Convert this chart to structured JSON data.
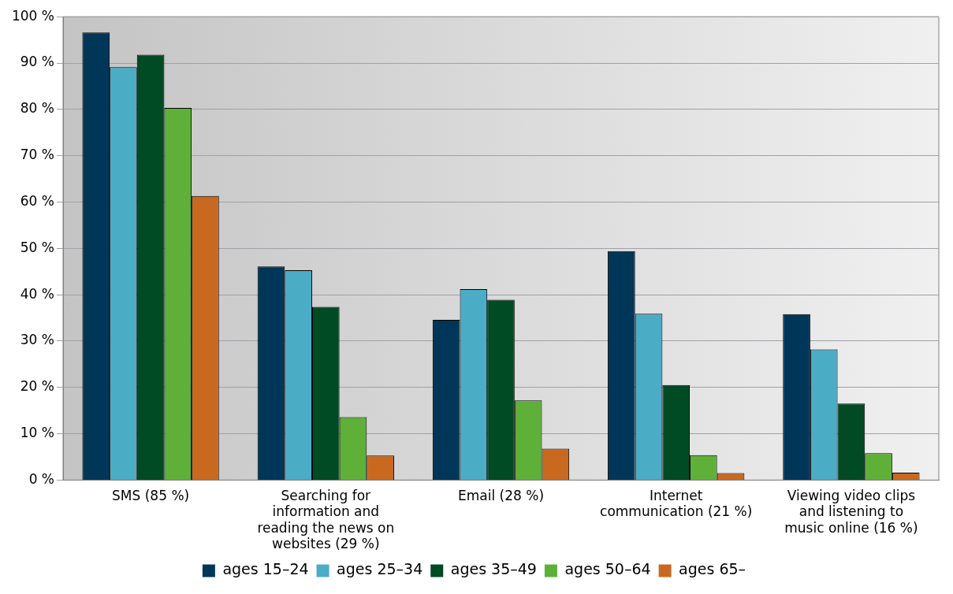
{
  "chart_data": {
    "type": "bar",
    "categories": [
      "SMS (85 %)",
      "Searching for information and reading the news on websites (29 %)",
      "Email (28 %)",
      "Internet communication (21 %)",
      "Viewing video clips and listening to music online (16 %)"
    ],
    "series": [
      {
        "name": "ages 15–24",
        "color": "#003658",
        "values": [
          96.6,
          46.1,
          34.6,
          49.4,
          35.8
        ]
      },
      {
        "name": "ages 25–34",
        "color": "#4bacc6",
        "values": [
          89.1,
          45.3,
          41.2,
          35.9,
          28.2
        ]
      },
      {
        "name": "ages 35–49",
        "color": "#004a24",
        "values": [
          91.8,
          37.4,
          38.9,
          20.5,
          16.5
        ]
      },
      {
        "name": "ages 50–64",
        "color": "#5eb038",
        "values": [
          80.3,
          13.6,
          17.2,
          5.4,
          5.8
        ]
      },
      {
        "name": "ages 65–",
        "color": "#c8691f",
        "values": [
          61.3,
          5.3,
          6.8,
          1.5,
          1.6
        ]
      }
    ],
    "ylim": [
      0,
      100
    ],
    "yticks": [
      {
        "value": 0,
        "label": "0 %"
      },
      {
        "value": 10,
        "label": "10 %"
      },
      {
        "value": 20,
        "label": "20 %"
      },
      {
        "value": 30,
        "label": "30 %"
      },
      {
        "value": 40,
        "label": "40 %"
      },
      {
        "value": 50,
        "label": "50 %"
      },
      {
        "value": 60,
        "label": "60 %"
      },
      {
        "value": 70,
        "label": "70 %"
      },
      {
        "value": 80,
        "label": "80 %"
      },
      {
        "value": 90,
        "label": "90 %"
      },
      {
        "value": 100,
        "label": "100 %"
      }
    ],
    "grid": "y",
    "legend": "bottom"
  }
}
